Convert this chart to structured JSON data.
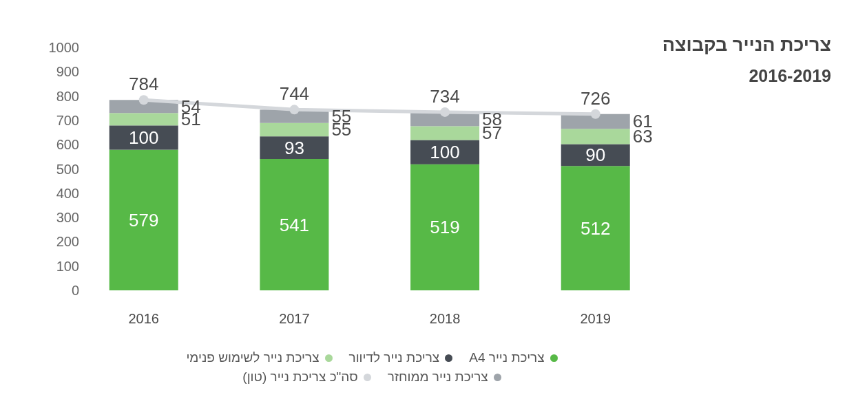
{
  "chart_data": {
    "type": "bar",
    "title": "צריכת הנייר בקבוצה",
    "subtitle": "2016-2019",
    "categories": [
      "2016",
      "2017",
      "2018",
      "2019"
    ],
    "stacked": true,
    "data_labels": true,
    "legend": "bottom",
    "ylim": [
      0,
      1000
    ],
    "yticks": [
      0,
      100,
      200,
      300,
      400,
      500,
      600,
      700,
      800,
      900,
      1000
    ],
    "series": [
      {
        "name": "צריכת נייר A4",
        "color": "#57b947",
        "values": [
          579,
          541,
          519,
          512
        ]
      },
      {
        "name": "צריכת נייר לדיוור",
        "color": "#464c54",
        "values": [
          100,
          93,
          100,
          90
        ]
      },
      {
        "name": "צריכת נייר לשימוש פנימי",
        "color": "#a9d89b",
        "values": [
          51,
          55,
          57,
          63
        ]
      },
      {
        "name": "צריכת נייר ממוחזר",
        "color": "#9ea4aa",
        "values": [
          54,
          55,
          58,
          61
        ]
      },
      {
        "name": "סה\"כ צריכת נייר (טון)",
        "type": "line",
        "color": "#d4d7db",
        "marker": "circle",
        "values": [
          784,
          744,
          734,
          726
        ]
      }
    ]
  }
}
